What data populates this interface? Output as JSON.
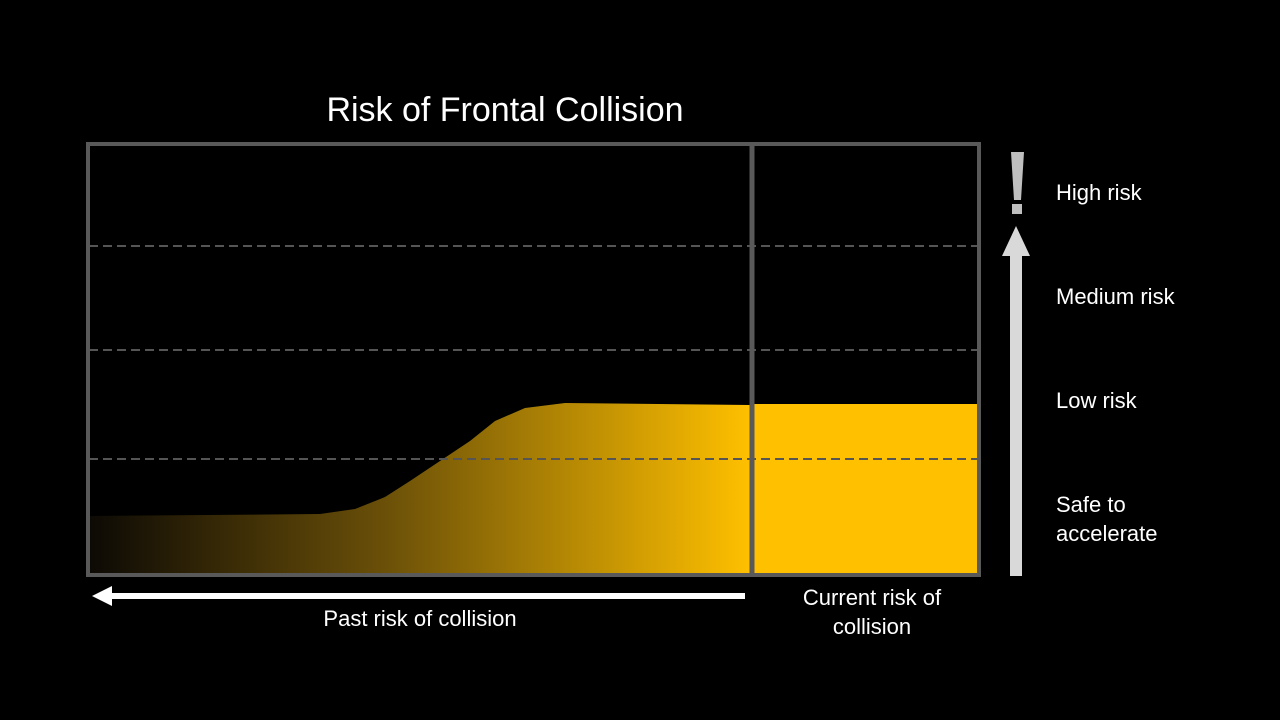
{
  "title": "Risk of Frontal Collision",
  "risk_levels": [
    "High risk",
    "Medium risk",
    "Low risk",
    "Safe to accelerate"
  ],
  "past_label": "Past risk of collision",
  "current_label": "Current risk of collision"
}
